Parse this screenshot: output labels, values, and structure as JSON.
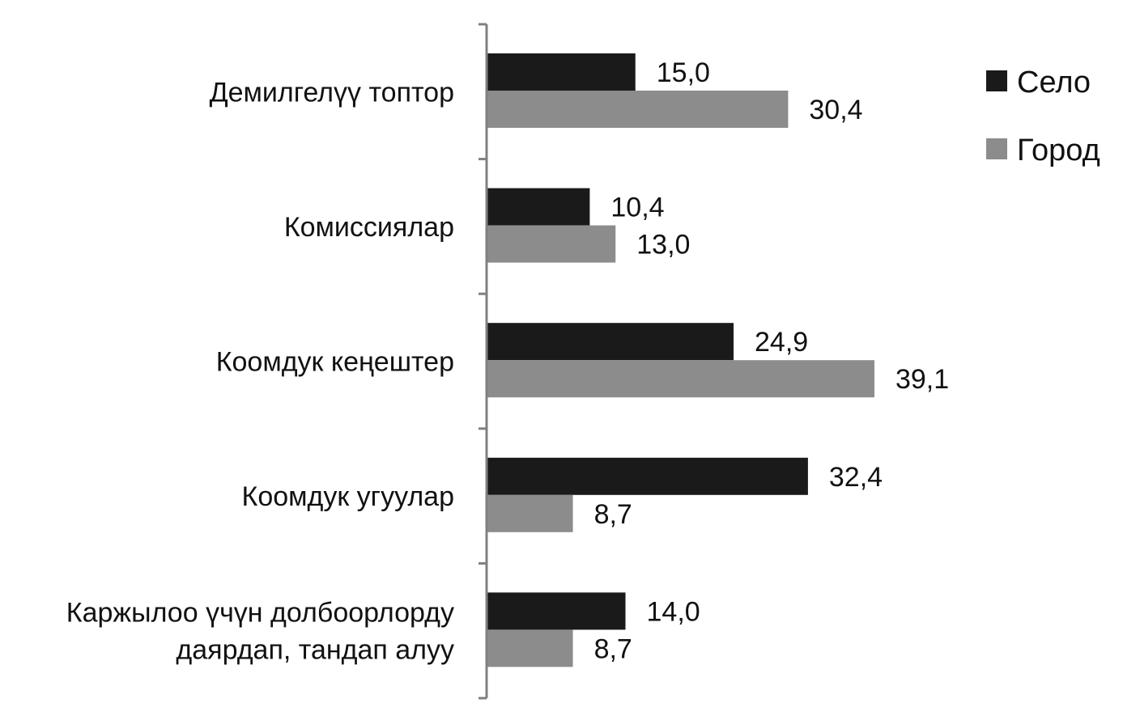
{
  "chart_data": {
    "type": "bar",
    "orientation": "horizontal",
    "categories": [
      [
        "Демилгелүү топтор"
      ],
      [
        "Комиссиялар"
      ],
      [
        "Коомдук кеңештер"
      ],
      [
        "Коомдук угуулар"
      ],
      [
        "Каржылоо үчүн долбоорлорду",
        "даярдап, тандап алуу"
      ]
    ],
    "series": [
      {
        "name": "Село",
        "color": "#1a1a1a",
        "values": [
          15.0,
          10.4,
          24.9,
          32.4,
          14.0
        ],
        "labels": [
          "15,0",
          "10,4",
          "24,9",
          "32,4",
          "14,0"
        ]
      },
      {
        "name": "Город",
        "color": "#8c8c8c",
        "values": [
          30.4,
          13.0,
          39.1,
          8.7,
          8.7
        ],
        "labels": [
          "30,4",
          "13,0",
          "39,1",
          "8,7",
          "8,7"
        ]
      }
    ],
    "xlim": [
      0,
      40
    ],
    "grid": false,
    "legend_position": "top-right"
  }
}
